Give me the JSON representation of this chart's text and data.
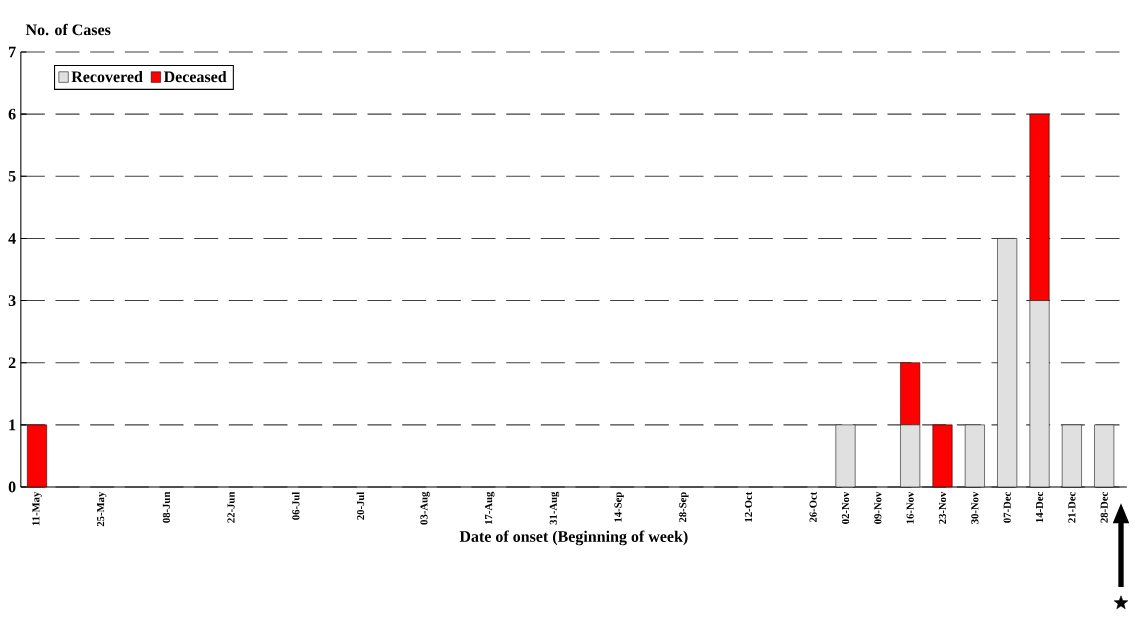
{
  "chart_data": {
    "type": "bar",
    "stacked": true,
    "ylabel": "No. of Cases",
    "xlabel": "Date of onset (Beginning of week)",
    "categories": [
      "11-May",
      null,
      "25-May",
      null,
      "08-Jun",
      null,
      "22-Jun",
      null,
      "06-Jul",
      null,
      "20-Jul",
      null,
      "03-Aug",
      null,
      "17-Aug",
      null,
      "31-Aug",
      null,
      "14-Sep",
      null,
      "28-Sep",
      null,
      "12-Oct",
      null,
      "26-Oct",
      "02-Nov",
      "09-Nov",
      "16-Nov",
      "23-Nov",
      "30-Nov",
      "07-Dec",
      "14-Dec",
      "21-Dec",
      "28-Dec"
    ],
    "series": [
      {
        "name": "Recovered",
        "color": "#e0e0e0",
        "values": [
          0,
          0,
          0,
          0,
          0,
          0,
          0,
          0,
          0,
          0,
          0,
          0,
          0,
          0,
          0,
          0,
          0,
          0,
          0,
          0,
          0,
          0,
          0,
          0,
          0,
          1,
          0,
          1,
          0,
          1,
          4,
          3,
          1,
          1
        ]
      },
      {
        "name": "Deceased",
        "color": "#ff0000",
        "values": [
          1,
          0,
          0,
          0,
          0,
          0,
          0,
          0,
          0,
          0,
          0,
          0,
          0,
          0,
          0,
          0,
          0,
          0,
          0,
          0,
          0,
          0,
          0,
          0,
          0,
          0,
          0,
          1,
          1,
          0,
          0,
          3,
          0,
          0
        ]
      }
    ],
    "ylim": [
      0,
      7
    ],
    "yticks": [
      0,
      1,
      2,
      3,
      4,
      5,
      6,
      7
    ],
    "grid": "y",
    "legend": "top left"
  }
}
